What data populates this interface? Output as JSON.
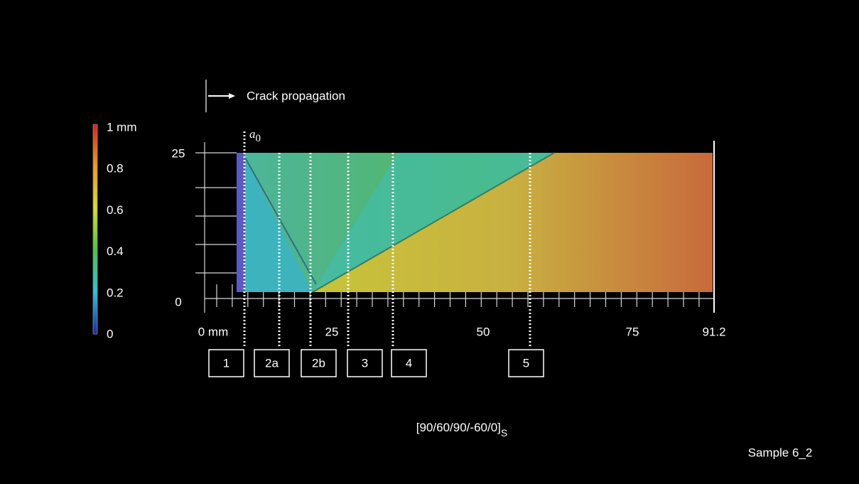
{
  "arrow_label": "Crack propagation",
  "colorbar": {
    "labels": [
      "1 mm",
      "0.8",
      "0.6",
      "0.4",
      "0.2",
      "0"
    ]
  },
  "y_axis": {
    "labels": [
      "25",
      "0"
    ]
  },
  "x_axis": {
    "labels": [
      "0 mm",
      "25",
      "50",
      "75",
      "91.2"
    ]
  },
  "crack_start": {
    "symbol": "a",
    "subscript": "0"
  },
  "regions": [
    "1",
    "2a",
    "2b",
    "3",
    "4",
    "5"
  ],
  "layup": {
    "text": "[90/60/90/-60/0]",
    "subscript": "S"
  },
  "sample": "Sample 6_2"
}
